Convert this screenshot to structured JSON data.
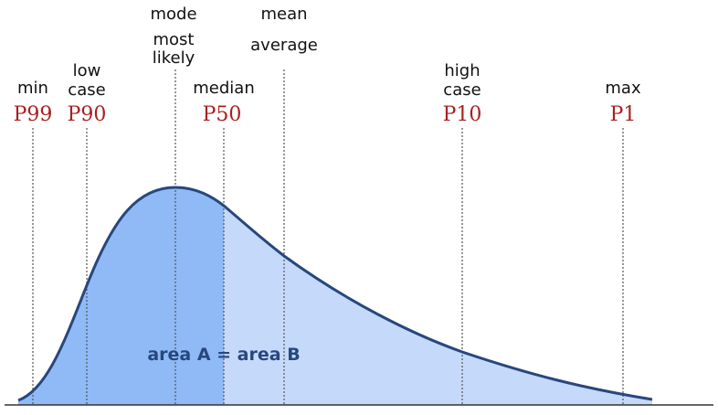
{
  "colors": {
    "curve": "#28477d",
    "fill_left": "#8fbaf6",
    "fill_right": "#c5dafb",
    "percentile": "#a82020",
    "area_text": "#28477d",
    "baseline": "#333333"
  },
  "area_label": "area A = area B",
  "markers": [
    {
      "id": "min",
      "percentile": "P99",
      "lines": [
        "min"
      ]
    },
    {
      "id": "low",
      "percentile": "P90",
      "lines": [
        "low",
        "case"
      ]
    },
    {
      "id": "mode",
      "percentile": "",
      "lines": [
        "mode",
        "most",
        "likely"
      ]
    },
    {
      "id": "median",
      "percentile": "P50",
      "lines": [
        "median"
      ]
    },
    {
      "id": "mean",
      "percentile": "",
      "lines": [
        "mean",
        "average"
      ]
    },
    {
      "id": "high",
      "percentile": "P10",
      "lines": [
        "high",
        "case"
      ]
    },
    {
      "id": "max",
      "percentile": "P1",
      "lines": [
        "max"
      ]
    }
  ]
}
